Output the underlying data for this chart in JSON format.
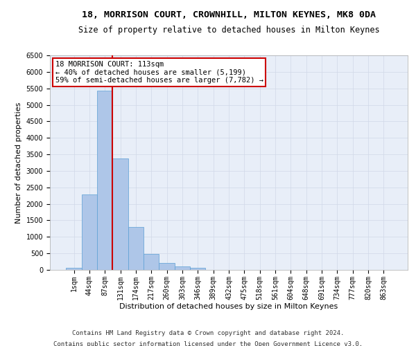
{
  "title_line1": "18, MORRISON COURT, CROWNHILL, MILTON KEYNES, MK8 0DA",
  "title_line2": "Size of property relative to detached houses in Milton Keynes",
  "xlabel": "Distribution of detached houses by size in Milton Keynes",
  "ylabel": "Number of detached properties",
  "footnote1": "Contains HM Land Registry data © Crown copyright and database right 2024.",
  "footnote2": "Contains public sector information licensed under the Open Government Licence v3.0.",
  "bar_labels": [
    "1sqm",
    "44sqm",
    "87sqm",
    "131sqm",
    "174sqm",
    "217sqm",
    "260sqm",
    "303sqm",
    "346sqm",
    "389sqm",
    "432sqm",
    "475sqm",
    "518sqm",
    "561sqm",
    "604sqm",
    "648sqm",
    "691sqm",
    "734sqm",
    "777sqm",
    "820sqm",
    "863sqm"
  ],
  "bar_values": [
    70,
    2280,
    5430,
    3380,
    1310,
    490,
    200,
    95,
    60,
    0,
    0,
    0,
    0,
    0,
    0,
    0,
    0,
    0,
    0,
    0,
    0
  ],
  "bar_color": "#aec6e8",
  "bar_edgecolor": "#5a9fd4",
  "annotation_box_text": "18 MORRISON COURT: 113sqm\n← 40% of detached houses are smaller (5,199)\n59% of semi-detached houses are larger (7,782) →",
  "annotation_box_color": "#ffffff",
  "annotation_box_edgecolor": "#cc0000",
  "vline_color": "#cc0000",
  "vline_x": 2.5,
  "ylim": [
    0,
    6500
  ],
  "yticks": [
    0,
    500,
    1000,
    1500,
    2000,
    2500,
    3000,
    3500,
    4000,
    4500,
    5000,
    5500,
    6000,
    6500
  ],
  "grid_color": "#d0d8e8",
  "bg_color": "#e8eef8",
  "bar_width": 1.0,
  "title_fontsize": 9.5,
  "subtitle_fontsize": 8.5,
  "axis_label_fontsize": 8,
  "tick_fontsize": 7,
  "annotation_fontsize": 7.5,
  "footnote_fontsize": 6.5
}
